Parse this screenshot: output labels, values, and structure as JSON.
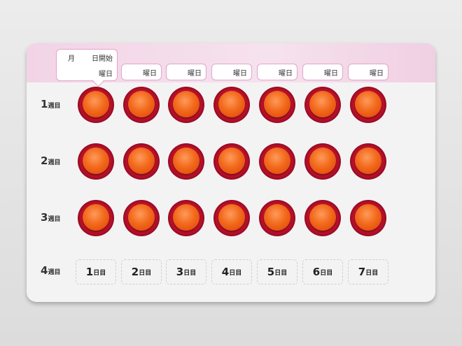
{
  "header": {
    "first_box": {
      "month": "月",
      "start": "日開始",
      "weekday": "曜日"
    },
    "weekday_label": "曜日",
    "box_count": 6
  },
  "weeks": [
    {
      "num": "1",
      "suffix": "週目"
    },
    {
      "num": "2",
      "suffix": "週目"
    },
    {
      "num": "3",
      "suffix": "週目"
    },
    {
      "num": "4",
      "suffix": "週目"
    }
  ],
  "pills_per_row": 7,
  "pill_color": "#f26a1c",
  "days": [
    {
      "num": "1",
      "suffix": "日目"
    },
    {
      "num": "2",
      "suffix": "日目"
    },
    {
      "num": "3",
      "suffix": "日目"
    },
    {
      "num": "4",
      "suffix": "日目"
    },
    {
      "num": "5",
      "suffix": "日目"
    },
    {
      "num": "6",
      "suffix": "日目"
    },
    {
      "num": "7",
      "suffix": "日目"
    }
  ]
}
